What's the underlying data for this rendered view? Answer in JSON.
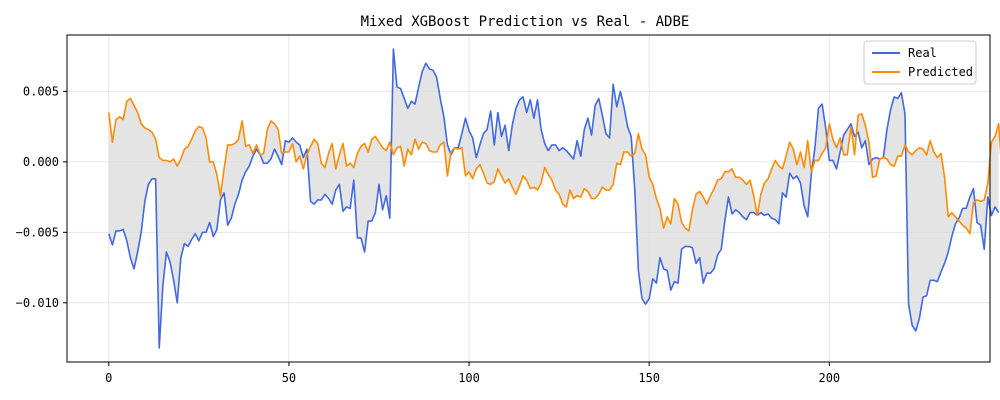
{
  "chart_data": {
    "type": "line",
    "title": "Mixed XGBoost Prediction vs Real - ADBE",
    "xlabel": "",
    "ylabel": "",
    "xlim": [
      -11.6,
      244.6
    ],
    "ylim": [
      -0.0142,
      0.009
    ],
    "xticks": [
      0,
      50,
      100,
      150,
      200
    ],
    "xtick_labels": [
      "0",
      "50",
      "100",
      "150",
      "200"
    ],
    "yticks": [
      -0.01,
      -0.005,
      0.0,
      0.005
    ],
    "ytick_labels": [
      "−0.010",
      "−0.005",
      "0.000",
      "0.005"
    ],
    "grid": true,
    "legend_position": "top-right",
    "fill_between": true,
    "colors": {
      "fill": "#d9d9d9",
      "grid": "#e6e6e6",
      "axis": "#000000"
    },
    "series": [
      {
        "name": "Real",
        "color": "#4169e1",
        "values": [
          -0.0051,
          -0.0059,
          -0.0049,
          -0.0049,
          -0.0048,
          -0.0056,
          -0.0068,
          -0.0076,
          -0.0064,
          -0.005,
          -0.0028,
          -0.0016,
          -0.0012,
          -0.0012,
          -0.0132,
          -0.0088,
          -0.0064,
          -0.0071,
          -0.0084,
          -0.01,
          -0.0068,
          -0.0058,
          -0.006,
          -0.0055,
          -0.0051,
          -0.0056,
          -0.005,
          -0.005,
          -0.0043,
          -0.0053,
          -0.0048,
          -0.0027,
          -0.0022,
          -0.0045,
          -0.004,
          -0.003,
          -0.0023,
          -0.0013,
          -0.0007,
          -0.0003,
          0.0004,
          0.0009,
          0.0005,
          -0.0001,
          -0.0001,
          0.0002,
          0.0009,
          0.0004,
          -0.0002,
          0.0015,
          0.0014,
          0.0017,
          0.0014,
          0.0012,
          0.0003,
          0.0009,
          -0.0028,
          -0.003,
          -0.0027,
          -0.0027,
          -0.0023,
          -0.0026,
          -0.003,
          -0.002,
          -0.0016,
          -0.0035,
          -0.0032,
          -0.0033,
          -0.0013,
          -0.0054,
          -0.0054,
          -0.0064,
          -0.0042,
          -0.0042,
          -0.0036,
          -0.0016,
          -0.0034,
          -0.0024,
          -0.004,
          0.008,
          0.0053,
          0.0052,
          0.0045,
          0.0038,
          0.0043,
          0.0041,
          0.0053,
          0.0064,
          0.007,
          0.0066,
          0.0065,
          0.006,
          0.0045,
          0.0032,
          0.0012,
          0.0005,
          0.001,
          0.001,
          0.002,
          0.0031,
          0.0022,
          0.0017,
          0.0003,
          0.0012,
          0.002,
          0.0023,
          0.0036,
          0.0012,
          0.0035,
          0.0018,
          0.0026,
          0.0008,
          0.0026,
          0.0038,
          0.0044,
          0.0046,
          0.0035,
          0.0044,
          0.0031,
          0.0044,
          0.0023,
          0.0013,
          0.0008,
          0.0012,
          0.0012,
          0.0008,
          0.001,
          0.0008,
          0.0005,
          0.0002,
          0.0015,
          0.0004,
          0.0023,
          0.0031,
          0.0019,
          0.004,
          0.0045,
          0.0033,
          0.002,
          0.0017,
          0.0055,
          0.0039,
          0.005,
          0.0039,
          0.0025,
          0.0018,
          -0.002,
          -0.0077,
          -0.0097,
          -0.0101,
          -0.0097,
          -0.0083,
          -0.0086,
          -0.0068,
          -0.0076,
          -0.0077,
          -0.0091,
          -0.0085,
          -0.0086,
          -0.0062,
          -0.006,
          -0.006,
          -0.0061,
          -0.0072,
          -0.0068,
          -0.0086,
          -0.0079,
          -0.0079,
          -0.0076,
          -0.0066,
          -0.0062,
          -0.0042,
          -0.0025,
          -0.0037,
          -0.0034,
          -0.0036,
          -0.0039,
          -0.0041,
          -0.0036,
          -0.0036,
          -0.0038,
          -0.0036,
          -0.0038,
          -0.0037,
          -0.004,
          -0.0041,
          -0.0044,
          -0.0022,
          -0.0025,
          -0.0008,
          -0.0012,
          -0.001,
          -0.0015,
          -0.0031,
          -0.0039,
          -0.0009,
          0.001,
          0.0038,
          0.0041,
          0.0024,
          0.0001,
          0.0001,
          -0.0005,
          0.0007,
          0.0019,
          0.0023,
          0.0027,
          0.0018,
          0.0021,
          0.001,
          0.0015,
          -0.0002,
          0.0002,
          0.0003,
          0.0002,
          0.0003,
          0.0023,
          0.0037,
          0.0046,
          0.0045,
          0.0049,
          0.0034,
          -0.0101,
          -0.0116,
          -0.012,
          -0.0111,
          -0.0096,
          -0.0095,
          -0.0084,
          -0.0084,
          -0.0085,
          -0.0078,
          -0.0072,
          -0.0064,
          -0.0053,
          -0.0044,
          -0.004,
          -0.0033,
          -0.0033,
          -0.0025,
          -0.0019,
          -0.0043,
          -0.0045,
          -0.0062,
          -0.0025,
          -0.0038,
          -0.0032,
          -0.0036
        ]
      },
      {
        "name": "Predicted",
        "color": "#ff8c00",
        "values": [
          0.0035,
          0.0014,
          0.003,
          0.0032,
          0.003,
          0.0043,
          0.0045,
          0.004,
          0.0035,
          0.0027,
          0.0024,
          0.0023,
          0.0021,
          0.0016,
          0.0003,
          0.0001,
          0.0001,
          0.0,
          0.0002,
          -0.0003,
          0.0002,
          0.0009,
          0.0011,
          0.0016,
          0.0022,
          0.0025,
          0.0024,
          0.0017,
          -0.0,
          0.0,
          -0.0009,
          -0.0024,
          -0.0005,
          0.0012,
          0.0012,
          0.0013,
          0.0016,
          0.0029,
          0.0011,
          0.0012,
          0.0006,
          0.0012,
          0.0005,
          0.0006,
          0.0023,
          0.0029,
          0.0027,
          0.0023,
          0.0006,
          0.0007,
          0.0007,
          0.0013,
          0.0,
          0.0004,
          -0.0005,
          0.0005,
          0.0011,
          0.0016,
          0.0013,
          -0.0001,
          -0.0004,
          0.0006,
          0.0013,
          -0.0005,
          0.0005,
          0.0013,
          -0.0003,
          -0.0001,
          -0.0004,
          0.0006,
          0.0011,
          0.0013,
          0.0007,
          0.0016,
          0.0018,
          0.0014,
          0.001,
          0.0008,
          0.0014,
          0.0005,
          0.001,
          0.0011,
          -0.0003,
          0.0009,
          0.0005,
          0.0016,
          0.0009,
          0.0014,
          0.0013,
          0.0008,
          0.0007,
          0.0007,
          0.0012,
          0.0014,
          -0.001,
          0.0007,
          0.001,
          0.0009,
          0.001,
          -0.001,
          -0.0007,
          -0.0012,
          -0.0005,
          -0.0002,
          -0.0008,
          -0.0015,
          -0.0016,
          -0.0014,
          -0.0005,
          -0.001,
          -0.0015,
          -0.0012,
          -0.0018,
          -0.0023,
          -0.0017,
          -0.001,
          -0.0013,
          -0.0019,
          -0.0018,
          -0.002,
          -0.0015,
          -0.0004,
          -0.0009,
          -0.0013,
          -0.002,
          -0.0023,
          -0.003,
          -0.0032,
          -0.002,
          -0.0026,
          -0.0024,
          -0.0025,
          -0.0019,
          -0.0021,
          -0.0026,
          -0.0026,
          -0.0023,
          -0.0018,
          -0.002,
          -0.002,
          -0.0016,
          -0.0001,
          -0.0002,
          0.0007,
          0.0007,
          0.0004,
          0.0006,
          0.002,
          0.0009,
          0.0005,
          -0.0011,
          -0.0016,
          -0.0026,
          -0.0033,
          -0.0047,
          -0.0039,
          -0.0044,
          -0.0026,
          -0.003,
          -0.0043,
          -0.0047,
          -0.0049,
          -0.0034,
          -0.0023,
          -0.0021,
          -0.0025,
          -0.003,
          -0.0024,
          -0.0019,
          -0.0013,
          -0.0012,
          -0.0007,
          -0.0007,
          -0.0005,
          -0.0011,
          -0.0011,
          -0.0013,
          -0.0016,
          -0.0013,
          -0.0024,
          -0.0038,
          -0.0023,
          -0.0015,
          -0.0012,
          -0.0005,
          0.0001,
          -0.0003,
          -0.0005,
          0.0004,
          0.0014,
          0.0009,
          -0.0002,
          0.0007,
          -0.0004,
          0.0015,
          -0.0007,
          0.0001,
          0.0001,
          0.0006,
          0.001,
          0.0027,
          0.0016,
          0.001,
          0.0017,
          0.0005,
          0.0005,
          0.0025,
          0.0005,
          0.0033,
          0.0034,
          0.0026,
          0.0014,
          -0.0011,
          -0.001,
          0.0002,
          0.0003,
          0.0002,
          -0.0002,
          -0.0003,
          0.0004,
          0.0004,
          0.0012,
          0.0007,
          0.0005,
          0.0008,
          0.001,
          0.0009,
          0.0005,
          0.0015,
          0.0007,
          0.0003,
          0.0006,
          -0.0011,
          -0.0039,
          -0.0036,
          -0.0039,
          -0.0042,
          -0.0045,
          -0.0047,
          -0.0051,
          -0.0029,
          -0.0027,
          -0.0028,
          -0.0027,
          -0.0015,
          0.0014,
          0.0018,
          0.0027,
          -0.0009,
          0.0021,
          -0.0002,
          0.0008,
          0.001,
          0.0021,
          0.001,
          0.0016
        ]
      }
    ]
  }
}
